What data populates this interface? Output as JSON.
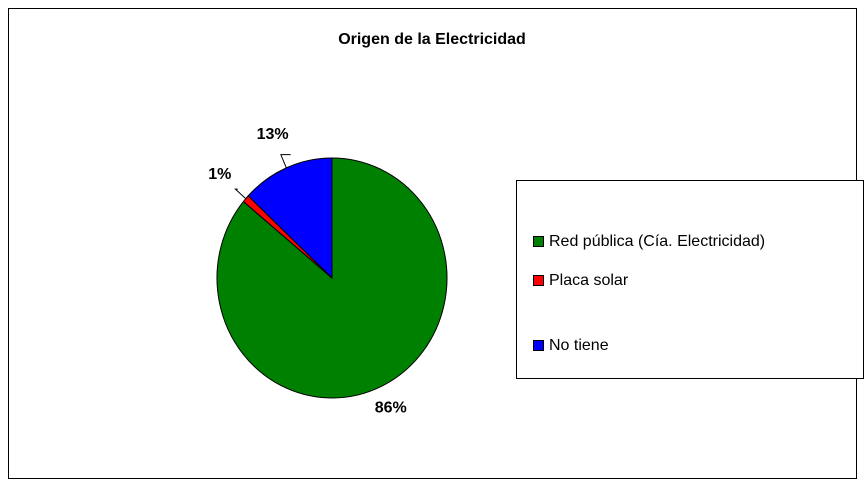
{
  "chart_data": {
    "type": "pie",
    "title": "Origen de la Electricidad",
    "categories": [
      "Red pública (Cía. Electricidad)",
      "Placa solar",
      "No tiene"
    ],
    "values": [
      86,
      1,
      13
    ],
    "value_labels": [
      "86%",
      "1%",
      "13%"
    ],
    "colors": [
      "#008000",
      "#ff0000",
      "#0000ff"
    ],
    "legend": "right"
  }
}
